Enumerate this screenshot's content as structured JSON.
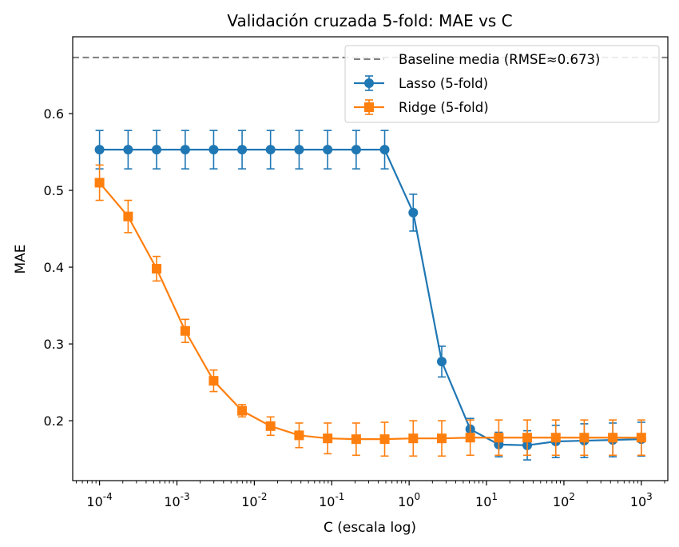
{
  "chart_data": {
    "type": "line",
    "title": "Validación cruzada 5-fold: MAE vs C",
    "xlabel": "C (escala log)",
    "ylabel": "MAE",
    "xscale": "log",
    "xlim": [
      4.5e-05,
      2200
    ],
    "ylim": [
      0.122,
      0.7
    ],
    "yticks": [
      0.2,
      0.3,
      0.4,
      0.5,
      0.6
    ],
    "ytick_labels": [
      "0.2",
      "0.3",
      "0.4",
      "0.5",
      "0.6"
    ],
    "xticks": [
      {
        "exp": "-4",
        "value": 0.0001
      },
      {
        "exp": "-3",
        "value": 0.001
      },
      {
        "exp": "-2",
        "value": 0.01
      },
      {
        "exp": "-1",
        "value": 0.1
      },
      {
        "exp": "0",
        "value": 1
      },
      {
        "exp": "1",
        "value": 10
      },
      {
        "exp": "2",
        "value": 100
      },
      {
        "exp": "3",
        "value": 1000
      }
    ],
    "xtick_base": "10",
    "grid": false,
    "legend_position": "top-right",
    "baseline": {
      "name": "Baseline media (RMSE≈0.673)",
      "value": 0.673,
      "color": "#7f7f7f",
      "style": "dashed"
    },
    "x": [
      0.0001,
      0.000234,
      0.000546,
      0.00128,
      0.00298,
      0.00695,
      0.0162,
      0.0379,
      0.0886,
      0.207,
      0.483,
      1.13,
      2.64,
      6.16,
      14.4,
      33.6,
      78.5,
      183,
      428,
      1000
    ],
    "series": [
      {
        "name": "Lasso (5-fold)",
        "color": "#1f77b4",
        "marker": "circle",
        "values": [
          0.553,
          0.553,
          0.553,
          0.553,
          0.553,
          0.553,
          0.553,
          0.553,
          0.553,
          0.553,
          0.553,
          0.471,
          0.277,
          0.189,
          0.169,
          0.168,
          0.173,
          0.174,
          0.175,
          0.176
        ],
        "errors": [
          0.025,
          0.025,
          0.025,
          0.025,
          0.025,
          0.025,
          0.025,
          0.025,
          0.025,
          0.025,
          0.025,
          0.024,
          0.02,
          0.014,
          0.016,
          0.019,
          0.021,
          0.022,
          0.022,
          0.022
        ]
      },
      {
        "name": "Ridge (5-fold)",
        "color": "#ff7f0e",
        "marker": "square",
        "values": [
          0.51,
          0.466,
          0.398,
          0.317,
          0.252,
          0.213,
          0.193,
          0.181,
          0.177,
          0.176,
          0.176,
          0.177,
          0.177,
          0.178,
          0.178,
          0.178,
          0.178,
          0.178,
          0.178,
          0.178
        ],
        "errors": [
          0.023,
          0.021,
          0.016,
          0.015,
          0.014,
          0.008,
          0.012,
          0.016,
          0.02,
          0.021,
          0.022,
          0.023,
          0.023,
          0.023,
          0.023,
          0.023,
          0.023,
          0.023,
          0.023,
          0.023
        ]
      }
    ]
  }
}
